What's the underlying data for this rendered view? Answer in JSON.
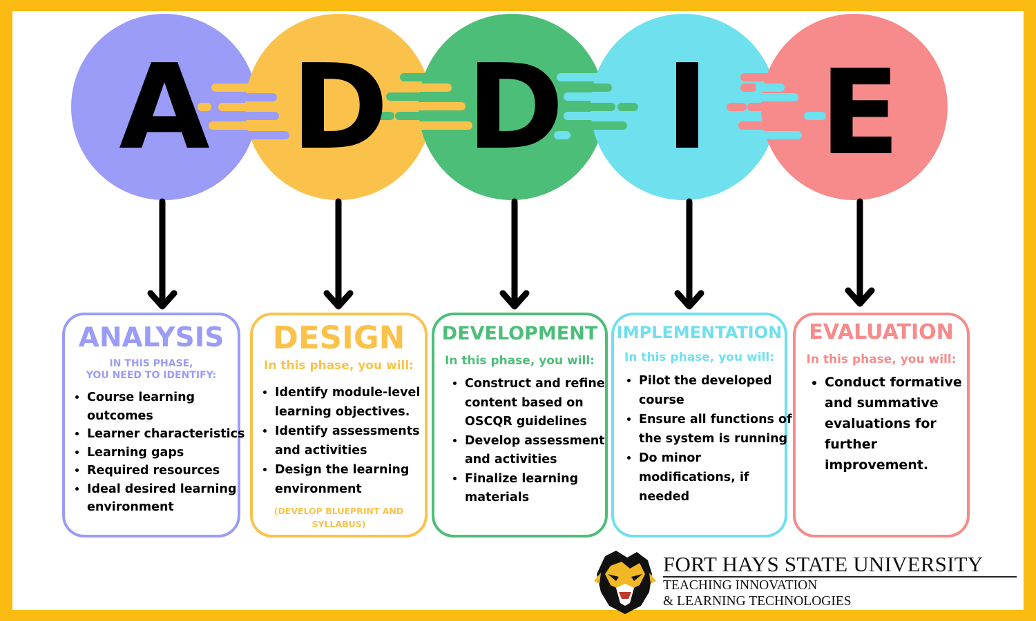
{
  "letters": [
    "A",
    "D",
    "D",
    "I",
    "E"
  ],
  "colors": {
    "frame": "#FBBB12",
    "analysis": "#9A9CF7",
    "design": "#FBC24B",
    "development": "#4DBE78",
    "implementation": "#6FE0EE",
    "evaluation": "#F78A8A"
  },
  "phases": {
    "analysis": {
      "title": "ANALYSIS",
      "subtitle_line1": "IN THIS PHASE,",
      "subtitle_line2": "YOU NEED TO IDENTIFY:",
      "items": [
        "Course learning outcomes",
        "Learner characteristics",
        "Learning gaps",
        "Required resources",
        "Ideal desired learning environment"
      ]
    },
    "design": {
      "title": "DESIGN",
      "subtitle": "In this phase, you will:",
      "items": [
        "Identify module-level learning objectives.",
        "Identify assessments and activities",
        "Design the learning environment"
      ],
      "note_line1": "(DEVELOP BLUEPRINT AND",
      "note_line2": "SYLLABUS)"
    },
    "development": {
      "title": "DEVELOPMENT",
      "subtitle": "In this phase, you will:",
      "items": [
        "Construct and refine content based on OSCQR guidelines",
        "Develop assessment and activities",
        "Finalize learning materials"
      ]
    },
    "implementation": {
      "title": "IMPLEMENTATION",
      "subtitle": "In this phase, you will:",
      "items": [
        "Pilot the developed course",
        "Ensure all functions of the system is running",
        "Do minor modifications, if needed"
      ]
    },
    "evaluation": {
      "title": "EVALUATION",
      "subtitle": "In this phase, you will:",
      "items": [
        "Conduct formative and summative evaluations for further improvement."
      ]
    }
  },
  "logo": {
    "title": "FORT HAYS STATE UNIVERSITY",
    "line1": "TEACHING INNOVATION",
    "line2": "& LEARNING TECHNOLOGIES",
    "icon": "tiger-head-icon"
  }
}
